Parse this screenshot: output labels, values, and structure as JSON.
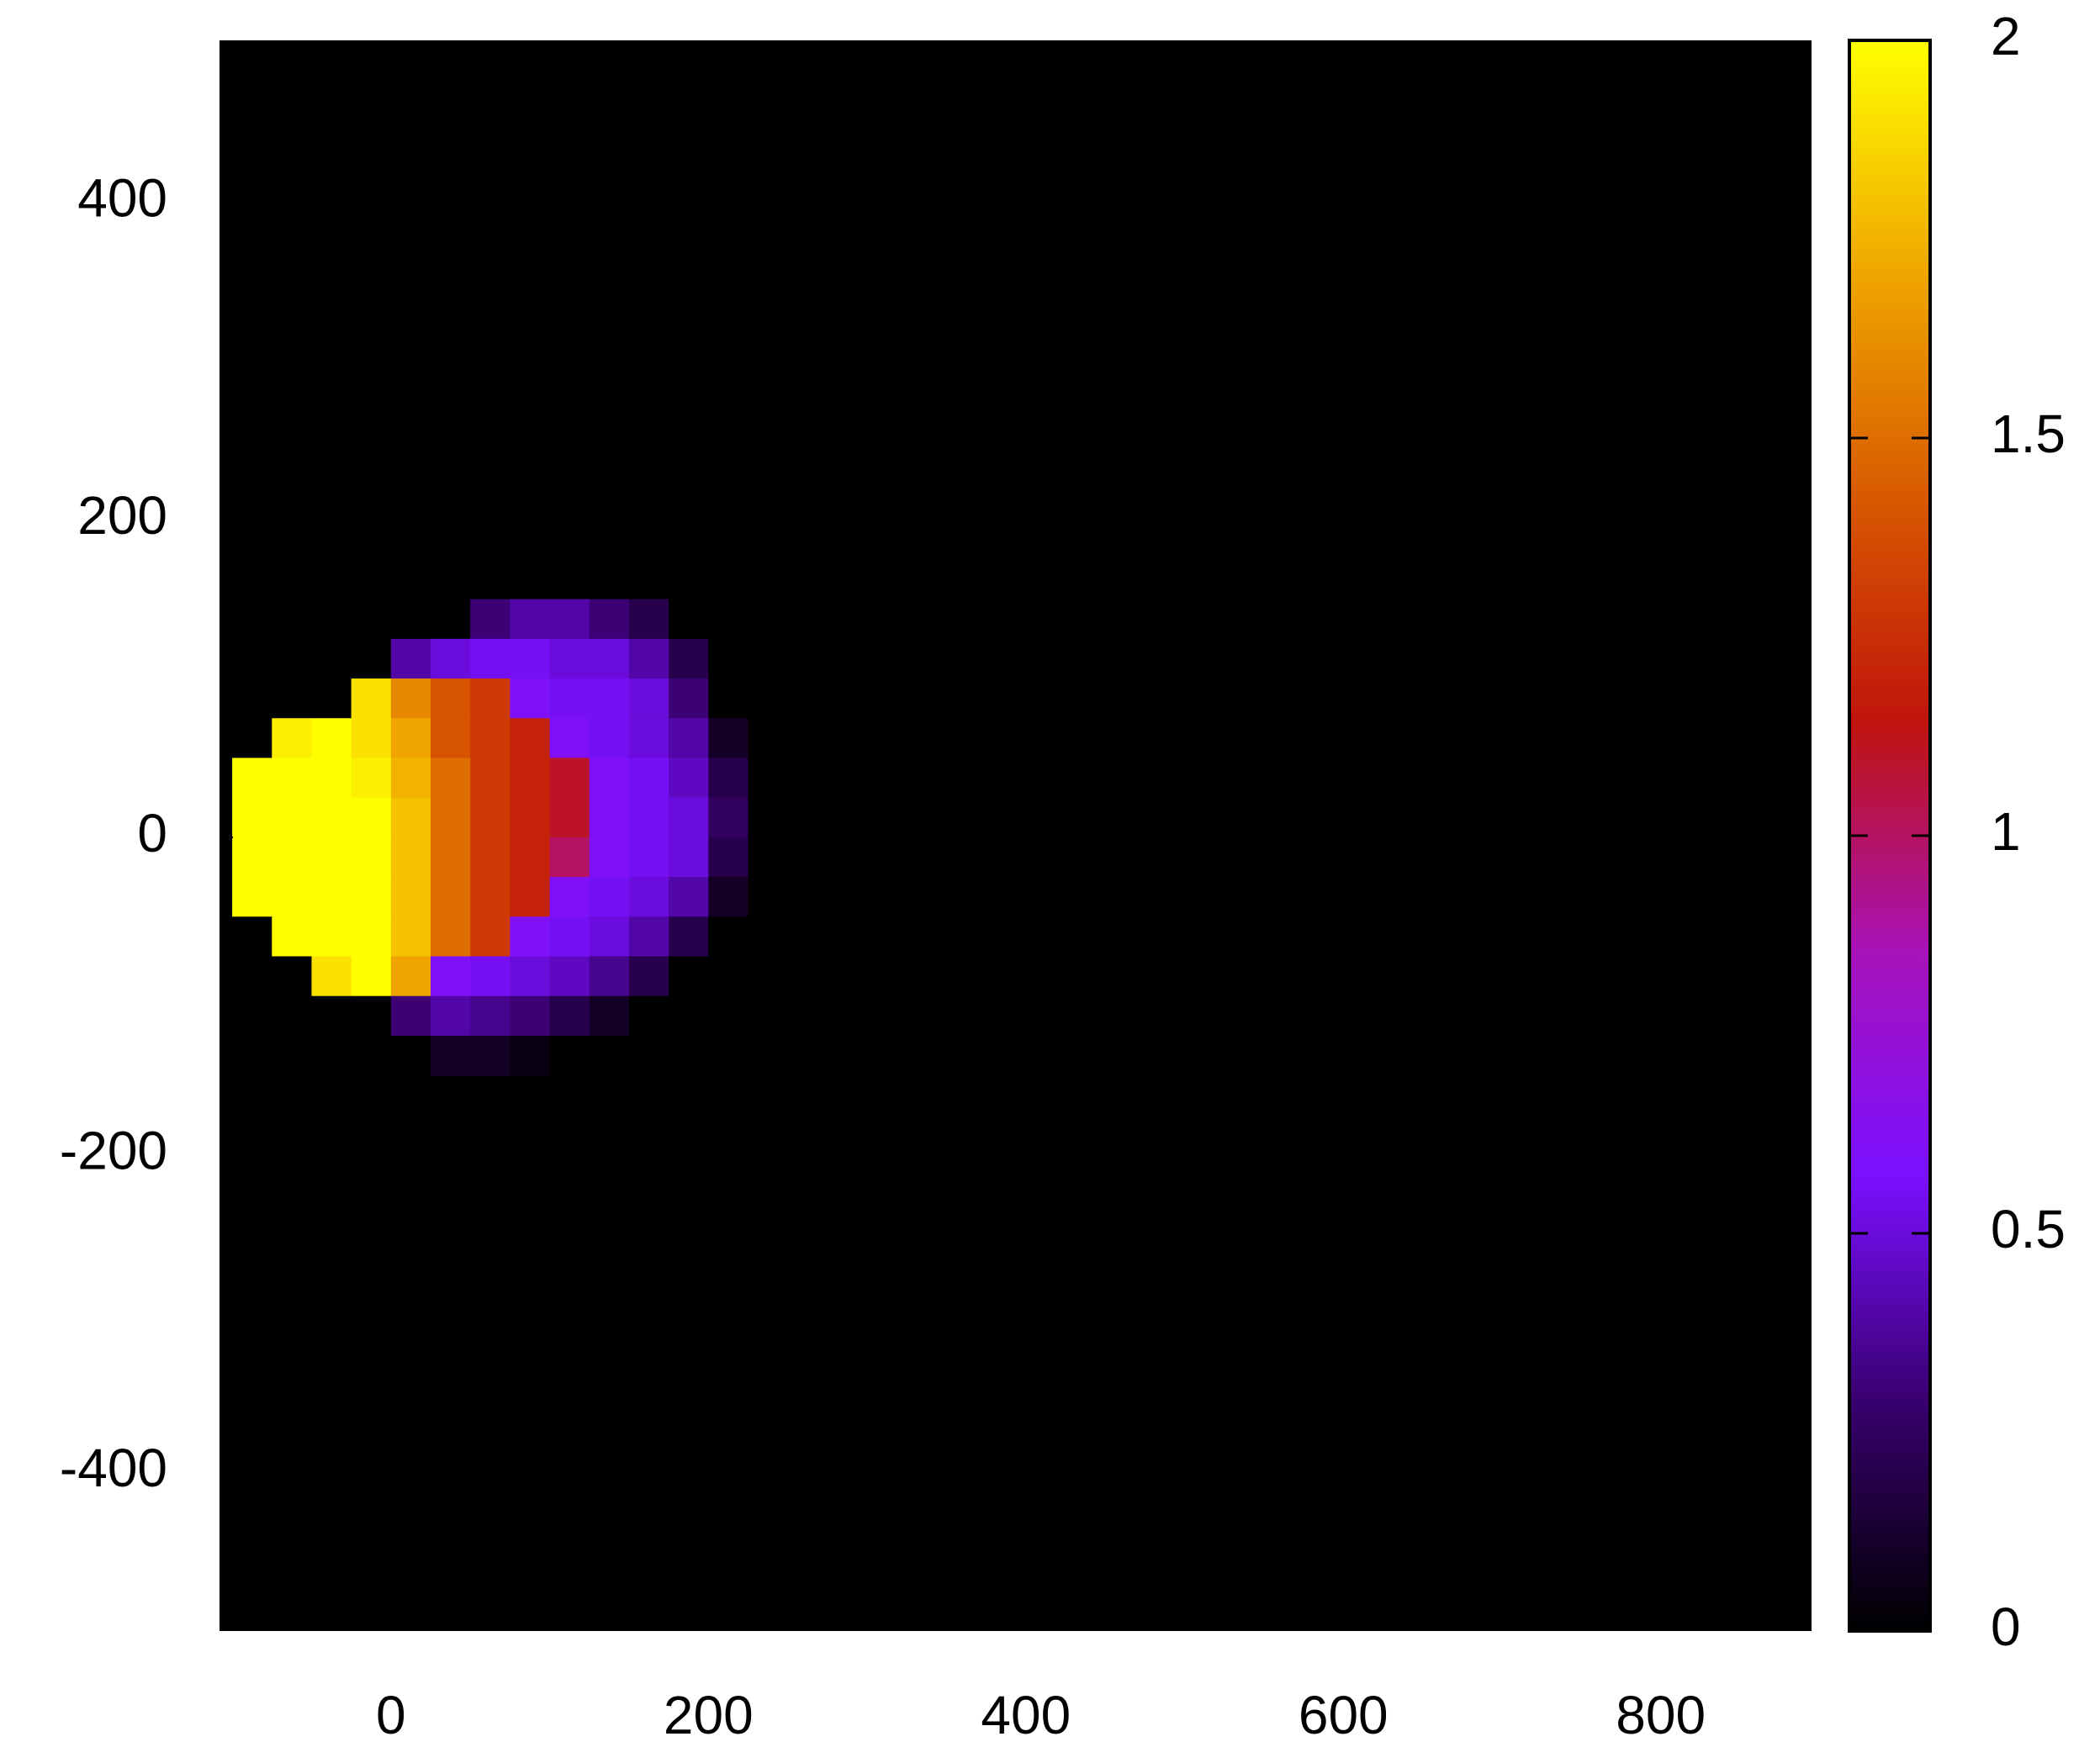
{
  "chart_data": {
    "type": "heatmap",
    "xlim": [
      -108,
      895
    ],
    "ylim": [
      -500,
      502
    ],
    "xticks": [
      0,
      200,
      400,
      600,
      800
    ],
    "yticks": [
      -400,
      -200,
      0,
      200,
      400
    ],
    "zlim": [
      0,
      2
    ],
    "zticks": [
      0,
      0.5,
      1,
      1.5,
      2
    ],
    "colormap": [
      "#000000",
      "#38006e",
      "#7a10ff",
      "#a812b8",
      "#c0140c",
      "#d85a00",
      "#f0a800",
      "#ffff00"
    ],
    "x_edges": [
      -100,
      -75,
      -50,
      -25,
      0,
      25,
      50,
      75,
      100,
      125,
      150,
      175,
      200,
      225,
      250
    ],
    "y_edges": [
      150,
      125,
      100,
      75,
      50,
      25,
      0,
      -25,
      -50,
      -75,
      -100,
      -125,
      -150
    ],
    "z": [
      [
        0,
        0,
        0,
        0,
        0,
        0,
        0.3,
        0.4,
        0.4,
        0.3,
        0.2,
        0,
        0,
        0
      ],
      [
        0,
        0,
        0,
        0,
        0.4,
        0.5,
        0.55,
        0.55,
        0.5,
        0.5,
        0.4,
        0.2,
        0,
        0
      ],
      [
        0,
        0,
        0,
        1.9,
        1.6,
        1.4,
        1.3,
        0.6,
        0.55,
        0.55,
        0.5,
        0.3,
        0,
        0
      ],
      [
        0,
        1.95,
        2,
        1.9,
        1.7,
        1.4,
        1.3,
        1.2,
        0.6,
        0.55,
        0.5,
        0.4,
        0.1,
        0
      ],
      [
        2,
        2,
        2,
        1.95,
        1.75,
        1.5,
        1.3,
        1.2,
        1.1,
        0.6,
        0.55,
        0.45,
        0.2,
        0
      ],
      [
        2,
        2,
        2,
        2,
        1.8,
        1.5,
        1.3,
        1.2,
        1.1,
        0.6,
        0.55,
        0.5,
        0.25,
        0
      ],
      [
        2,
        2,
        2,
        2,
        1.8,
        1.5,
        1.3,
        1.2,
        1.0,
        0.6,
        0.55,
        0.5,
        0.2,
        0
      ],
      [
        2,
        2,
        2,
        2,
        1.8,
        1.5,
        1.3,
        1.2,
        0.6,
        0.55,
        0.5,
        0.4,
        0.1,
        0
      ],
      [
        0,
        2,
        2,
        2,
        1.8,
        1.5,
        1.3,
        0.6,
        0.55,
        0.5,
        0.4,
        0.2,
        0,
        0
      ],
      [
        0,
        0,
        1.9,
        2,
        1.7,
        0.6,
        0.55,
        0.5,
        0.45,
        0.35,
        0.2,
        0,
        0,
        0
      ],
      [
        0,
        0,
        0,
        0,
        0.3,
        0.4,
        0.35,
        0.3,
        0.2,
        0.1,
        0,
        0,
        0,
        0
      ],
      [
        0,
        0,
        0,
        0,
        0,
        0.1,
        0.1,
        0.05,
        0,
        0,
        0,
        0,
        0,
        0
      ]
    ]
  }
}
